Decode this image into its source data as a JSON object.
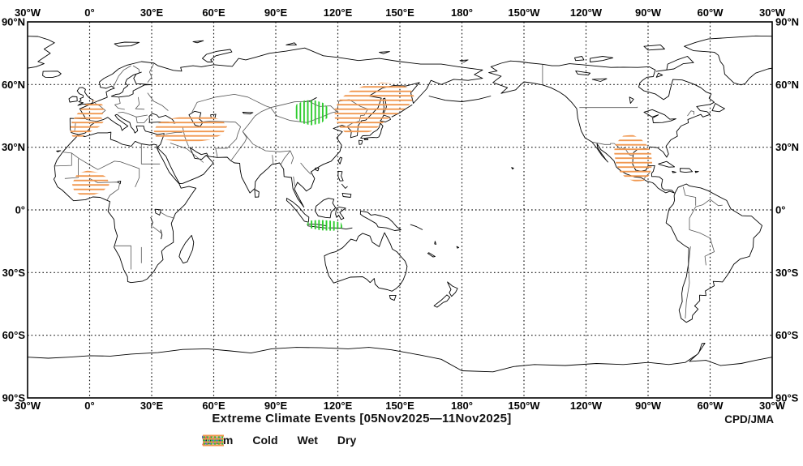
{
  "title": "Extreme Climate Events [05Nov2025—11Nov2025]",
  "source": "CPD/JMA",
  "axes": {
    "top": [
      "30°W",
      "0°",
      "30°E",
      "60°E",
      "90°E",
      "120°E",
      "150°E",
      "180°",
      "150°W",
      "120°W",
      "90°W",
      "60°W",
      "30°W"
    ],
    "bottom": [
      "30°W",
      "0°",
      "30°E",
      "60°E",
      "90°E",
      "120°E",
      "150°E",
      "180°",
      "150°W",
      "120°W",
      "90°W",
      "60°W",
      "30°W"
    ],
    "left": [
      "90°N",
      "60°N",
      "30°N",
      "0°",
      "30°S",
      "60°S",
      "90°S"
    ],
    "right": [
      "90°N",
      "60°N",
      "30°N",
      "0°",
      "30°S",
      "60°S",
      "90°S"
    ]
  },
  "legend": [
    {
      "label": "Warm",
      "color": "#ee5a50",
      "pattern": "diag-up"
    },
    {
      "label": "Cold",
      "color": "#4f63e0",
      "pattern": "diag-down"
    },
    {
      "label": "Wet",
      "color": "#2ecc2e",
      "pattern": "vertical"
    },
    {
      "label": "Dry",
      "color": "#f09850",
      "pattern": "horizontal"
    }
  ],
  "chart_data": {
    "type": "map",
    "projection": "equirectangular-pacific-centered",
    "lon_range": [
      -30,
      330
    ],
    "lat_range": [
      -90,
      90
    ],
    "grid_interval_deg": 30,
    "period_start": "05Nov2025",
    "period_end": "11Nov2025",
    "events": [
      {
        "type": "Dry",
        "region": "Western Europe / Iberia",
        "polygon": [
          [
            -8.5,
            35.5
          ],
          [
            -9.5,
            38
          ],
          [
            -9,
            41
          ],
          [
            -7.5,
            44
          ],
          [
            -4.5,
            48
          ],
          [
            -1.5,
            51
          ],
          [
            1.5,
            52.5
          ],
          [
            4.5,
            52
          ],
          [
            6.5,
            50
          ],
          [
            7,
            47
          ],
          [
            5.5,
            44.5
          ],
          [
            7,
            42.5
          ],
          [
            5,
            40
          ],
          [
            1.5,
            38
          ],
          [
            -1,
            36.5
          ],
          [
            -4.5,
            34.5
          ],
          [
            -7,
            33.5
          ]
        ]
      },
      {
        "type": "Dry",
        "region": "West Africa",
        "polygon": [
          [
            -6,
            17.5
          ],
          [
            -1,
            18.8
          ],
          [
            4,
            18
          ],
          [
            8.5,
            15.5
          ],
          [
            9.5,
            12
          ],
          [
            6,
            8.5
          ],
          [
            1,
            7
          ],
          [
            -4,
            6.8
          ],
          [
            -7.5,
            9
          ],
          [
            -8.5,
            12.5
          ]
        ]
      },
      {
        "type": "Dry",
        "region": "Turkey / Caucasus / Central Asia",
        "polygon": [
          [
            31,
            38
          ],
          [
            33,
            41.5
          ],
          [
            38,
            43.5
          ],
          [
            44,
            44.5
          ],
          [
            51,
            45.5
          ],
          [
            58,
            45
          ],
          [
            64,
            43
          ],
          [
            66.5,
            40
          ],
          [
            64,
            36
          ],
          [
            58,
            33.5
          ],
          [
            51,
            32.5
          ],
          [
            44,
            32.5
          ],
          [
            37,
            33.5
          ],
          [
            32,
            35
          ]
        ]
      },
      {
        "type": "Wet",
        "region": "Mongolia",
        "polygon": [
          [
            100,
            50.5
          ],
          [
            104,
            52.5
          ],
          [
            109,
            52.5
          ],
          [
            113.5,
            51
          ],
          [
            116,
            48
          ],
          [
            115.5,
            44.5
          ],
          [
            112,
            41.5
          ],
          [
            107,
            40.5
          ],
          [
            102.5,
            41.5
          ],
          [
            99.5,
            44
          ],
          [
            99,
            47.5
          ]
        ]
      },
      {
        "type": "Dry",
        "region": "Northeast Asia",
        "polygon": [
          [
            121,
            53
          ],
          [
            126,
            57
          ],
          [
            133,
            59.5
          ],
          [
            141,
            61
          ],
          [
            149,
            60.5
          ],
          [
            155,
            58
          ],
          [
            157,
            54
          ],
          [
            154,
            49.5
          ],
          [
            149,
            46
          ],
          [
            144,
            43.5
          ],
          [
            140,
            40
          ],
          [
            136,
            37.5
          ],
          [
            130,
            36
          ],
          [
            124,
            36.5
          ],
          [
            120.5,
            40
          ],
          [
            118.5,
            44
          ],
          [
            118.5,
            48.5
          ]
        ]
      },
      {
        "type": "Wet",
        "region": "Indonesia / Java",
        "polygon": [
          [
            106,
            -5.2
          ],
          [
            111,
            -4.8
          ],
          [
            117,
            -5.2
          ],
          [
            121.5,
            -6
          ],
          [
            122.5,
            -8.5
          ],
          [
            118,
            -10
          ],
          [
            112,
            -9.8
          ],
          [
            107,
            -8.8
          ],
          [
            105,
            -7
          ]
        ]
      },
      {
        "type": "Dry",
        "region": "Mexico / Southern United States",
        "polygon": [
          [
            -106.5,
            28
          ],
          [
            -105.5,
            32
          ],
          [
            -102,
            35.5
          ],
          [
            -97.5,
            36
          ],
          [
            -93.5,
            34
          ],
          [
            -90.5,
            31
          ],
          [
            -88.5,
            27
          ],
          [
            -88,
            22
          ],
          [
            -89,
            17
          ],
          [
            -92,
            14
          ],
          [
            -96,
            13.5
          ],
          [
            -100.5,
            15
          ],
          [
            -103.5,
            18
          ],
          [
            -105.5,
            22
          ]
        ]
      }
    ]
  }
}
